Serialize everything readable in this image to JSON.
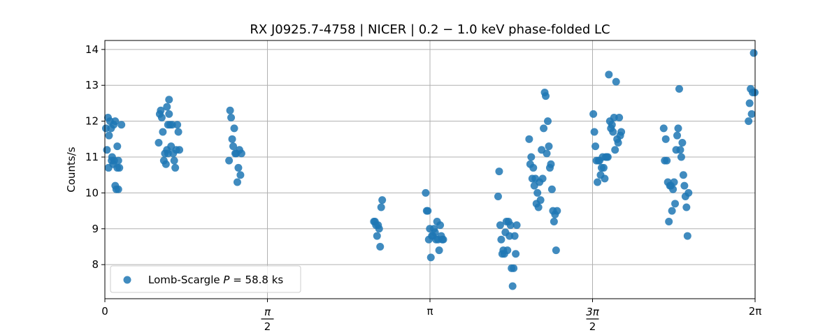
{
  "chart_data": {
    "type": "scatter",
    "title": "RX J0925.7-4758 | NICER | 0.2 − 1.0 keV phase-folded LC",
    "xlabel": "",
    "ylabel": "Counts/s",
    "xlim": [
      0,
      6.2832
    ],
    "ylim": [
      7.05,
      14.25
    ],
    "grid": true,
    "legend_position": "lower-left",
    "x_ticks": [
      {
        "value": 0,
        "label": "0"
      },
      {
        "value": 1.5708,
        "label_num": "π",
        "label_den": "2"
      },
      {
        "value": 3.1416,
        "label": "π"
      },
      {
        "value": 4.7124,
        "label_num": "3π",
        "label_den": "2"
      },
      {
        "value": 6.2832,
        "label": "2π"
      }
    ],
    "y_ticks": [
      8,
      9,
      10,
      11,
      12,
      13,
      14
    ],
    "series": [
      {
        "name": "Lomb-Scargle P = 58.8 ks",
        "color": "#1f77b4",
        "x": [
          0.01,
          0.02,
          0.03,
          0.035,
          0.04,
          0.05,
          0.06,
          0.065,
          0.07,
          0.08,
          0.085,
          0.09,
          0.1,
          0.11,
          0.12,
          0.12,
          0.13,
          0.13,
          0.14,
          0.16,
          0.1,
          0.52,
          0.53,
          0.54,
          0.55,
          0.56,
          0.57,
          0.58,
          0.59,
          0.6,
          0.6,
          0.61,
          0.61,
          0.62,
          0.62,
          0.63,
          0.64,
          0.65,
          0.66,
          0.67,
          0.68,
          0.69,
          0.7,
          0.71,
          0.72,
          1.2,
          1.21,
          1.22,
          1.23,
          1.24,
          1.25,
          1.26,
          1.27,
          1.28,
          1.29,
          1.3,
          1.31,
          1.32,
          2.6,
          2.61,
          2.62,
          2.63,
          2.64,
          2.65,
          2.66,
          2.67,
          2.68,
          3.1,
          3.11,
          3.12,
          3.13,
          3.14,
          3.15,
          3.16,
          3.17,
          3.18,
          3.19,
          3.2,
          3.21,
          3.22,
          3.23,
          3.24,
          3.25,
          3.26,
          3.27,
          3.8,
          3.81,
          3.82,
          3.83,
          3.84,
          3.85,
          3.86,
          3.87,
          3.88,
          3.89,
          3.9,
          3.91,
          3.92,
          3.93,
          3.94,
          3.95,
          3.96,
          3.97,
          3.98,
          4.1,
          4.11,
          4.12,
          4.13,
          4.14,
          4.15,
          4.16,
          4.17,
          4.18,
          4.19,
          4.2,
          4.21,
          4.22,
          4.23,
          4.24,
          4.25,
          4.26,
          4.27,
          4.28,
          4.29,
          4.3,
          4.31,
          4.32,
          4.33,
          4.34,
          4.35,
          4.36,
          4.37,
          4.72,
          4.73,
          4.74,
          4.75,
          4.76,
          4.77,
          4.78,
          4.79,
          4.8,
          4.81,
          4.82,
          4.83,
          4.84,
          4.85,
          4.86,
          4.87,
          4.88,
          4.89,
          4.9,
          4.91,
          4.92,
          4.93,
          4.94,
          4.95,
          4.96,
          4.97,
          4.98,
          4.99,
          5.4,
          5.41,
          5.42,
          5.43,
          5.44,
          5.45,
          5.46,
          5.47,
          5.48,
          5.49,
          5.5,
          5.51,
          5.52,
          5.53,
          5.54,
          5.55,
          5.56,
          5.57,
          5.58,
          5.59,
          5.6,
          5.61,
          5.62,
          5.63,
          5.64,
          6.22,
          6.23,
          6.24,
          6.25,
          6.26,
          6.27,
          6.28
        ],
        "y": [
          11.8,
          11.2,
          12.1,
          10.7,
          11.6,
          12.0,
          11.8,
          10.9,
          11.0,
          10.8,
          11.9,
          10.9,
          10.2,
          10.1,
          10.7,
          11.3,
          10.9,
          10.1,
          10.7,
          11.9,
          12.0,
          11.4,
          12.2,
          12.3,
          12.1,
          11.7,
          10.9,
          11.1,
          10.8,
          12.4,
          11.2,
          11.1,
          11.9,
          12.2,
          12.6,
          11.9,
          11.3,
          11.9,
          11.1,
          10.9,
          10.7,
          11.2,
          11.9,
          11.7,
          11.2,
          10.9,
          12.3,
          12.1,
          11.5,
          11.3,
          11.8,
          11.1,
          11.1,
          10.3,
          10.7,
          11.2,
          10.5,
          11.1,
          9.2,
          9.2,
          9.1,
          8.8,
          9.1,
          9.0,
          8.5,
          9.6,
          9.8,
          10.0,
          9.5,
          9.5,
          8.7,
          9.0,
          8.2,
          8.8,
          8.8,
          9.0,
          8.9,
          8.7,
          9.2,
          8.7,
          8.4,
          9.1,
          8.8,
          8.7,
          8.7,
          9.9,
          10.6,
          9.1,
          8.7,
          8.3,
          8.4,
          8.3,
          8.9,
          9.2,
          8.4,
          9.2,
          8.8,
          9.1,
          7.9,
          7.4,
          7.9,
          8.8,
          8.3,
          9.1,
          11.5,
          10.8,
          11.0,
          10.4,
          10.7,
          10.2,
          10.4,
          9.7,
          10.0,
          9.6,
          10.3,
          9.8,
          11.2,
          10.4,
          11.8,
          12.8,
          12.7,
          11.1,
          12.0,
          11.3,
          10.7,
          10.8,
          10.1,
          9.5,
          9.2,
          9.4,
          8.4,
          9.5,
          12.2,
          11.7,
          11.3,
          10.9,
          10.3,
          10.9,
          10.9,
          10.5,
          10.7,
          11.0,
          10.7,
          10.4,
          11.0,
          11.0,
          11.0,
          13.3,
          12.0,
          11.8,
          11.9,
          11.7,
          12.1,
          11.2,
          13.1,
          11.5,
          11.4,
          12.1,
          11.6,
          11.7,
          11.8,
          10.9,
          11.5,
          10.9,
          10.3,
          9.2,
          10.2,
          10.2,
          9.5,
          10.1,
          10.3,
          9.7,
          11.2,
          11.6,
          11.8,
          12.9,
          11.2,
          11.0,
          11.4,
          10.5,
          10.2,
          9.9,
          9.6,
          8.8,
          10.0,
          12.0,
          12.5,
          12.9,
          12.2,
          12.8,
          13.9,
          12.8
        ]
      }
    ]
  },
  "legend": {
    "label_prefix": "Lomb-Scargle ",
    "label_var": "P",
    "label_suffix": " = 58.8 ks"
  }
}
